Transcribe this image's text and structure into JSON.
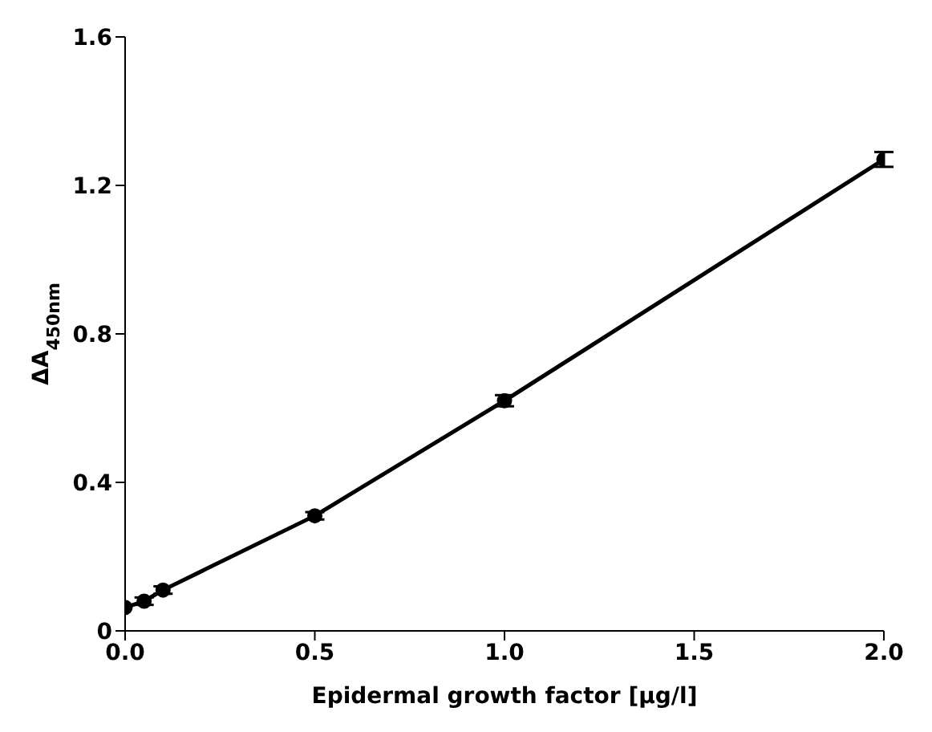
{
  "chart_data": {
    "type": "line",
    "xlabel": "Epidermal growth factor [µg/l]",
    "ylabel": "ΔA$_{450nm}$",
    "x": [
      0,
      0.05,
      0.1,
      0.5,
      1.0,
      2.0
    ],
    "values": [
      0.063,
      0.08,
      0.11,
      0.31,
      0.62,
      1.27
    ],
    "errors": [
      null,
      0.01,
      0.01,
      0.01,
      0.015,
      0.02
    ],
    "color": "#000000",
    "marker": "circle",
    "grid": false,
    "xlim": [
      0,
      2
    ],
    "xticks": [
      {
        "value": 0,
        "label": "0.0"
      },
      0.5,
      {
        "value": 1,
        "label": "1.0"
      },
      1.5,
      {
        "value": 2,
        "label": "2.0"
      }
    ],
    "ylim": [
      0,
      1.6
    ],
    "yticks": [
      0,
      0.4,
      0.8,
      1.2,
      1.6
    ]
  }
}
